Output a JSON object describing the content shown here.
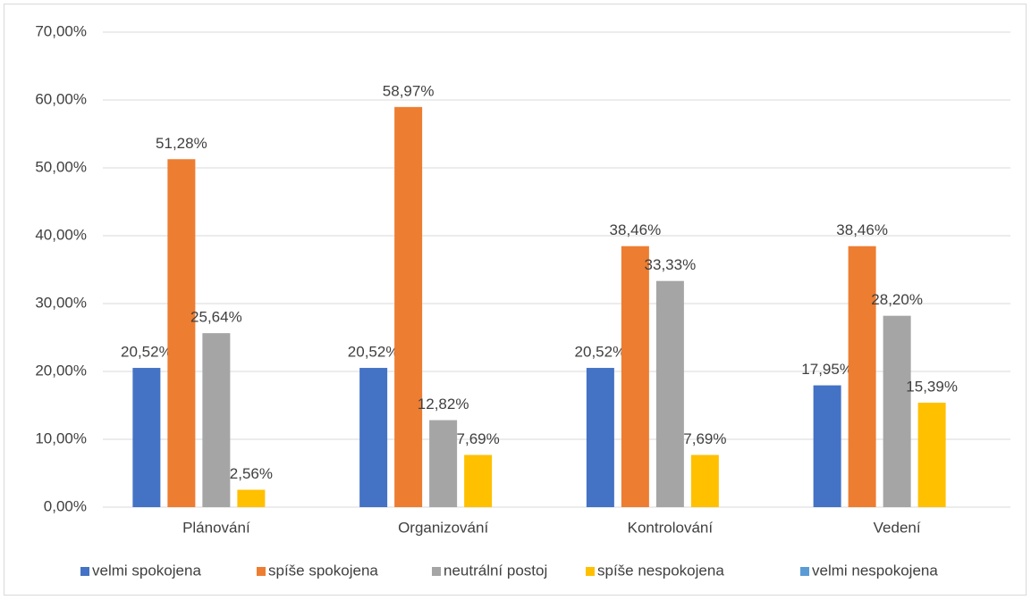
{
  "chart_data": {
    "type": "bar",
    "categories": [
      "Plánování",
      "Organizování",
      "Kontrolování",
      "Vedení"
    ],
    "series": [
      {
        "name": "velmi spokojena",
        "color": "#4472c4",
        "values": [
          20.52,
          20.52,
          20.52,
          17.95
        ],
        "value_labels": [
          "20,52%",
          "20,52%",
          "20,52%",
          "17,95%"
        ]
      },
      {
        "name": "spíše spokojena",
        "color": "#ed7d31",
        "values": [
          51.28,
          58.97,
          38.46,
          38.46
        ],
        "value_labels": [
          "51,28%",
          "58,97%",
          "38,46%",
          "38,46%"
        ]
      },
      {
        "name": "neutrální postoj",
        "color": "#a5a5a5",
        "values": [
          25.64,
          12.82,
          33.33,
          28.2
        ],
        "value_labels": [
          "25,64%",
          "12,82%",
          "33,33%",
          "28,20%"
        ]
      },
      {
        "name": "spíše nespokojena",
        "color": "#ffc000",
        "values": [
          2.56,
          7.69,
          7.69,
          15.39
        ],
        "value_labels": [
          "2,56%",
          "7,69%",
          "7,69%",
          "15,39%"
        ]
      },
      {
        "name": "velmi nespokojena",
        "color": "#5b9bd5",
        "values": [
          null,
          null,
          null,
          null
        ]
      }
    ],
    "ylim": [
      0,
      70
    ],
    "yticks": [
      {
        "value": 0,
        "label": "0,00%"
      },
      {
        "value": 10,
        "label": "10,00%"
      },
      {
        "value": 20,
        "label": "20,00%"
      },
      {
        "value": 30,
        "label": "30,00%"
      },
      {
        "value": 40,
        "label": "40,00%"
      },
      {
        "value": 50,
        "label": "50,00%"
      },
      {
        "value": 60,
        "label": "60,00%"
      },
      {
        "value": 70,
        "label": "70,00%"
      }
    ],
    "grid": true,
    "legend": "bottom"
  }
}
